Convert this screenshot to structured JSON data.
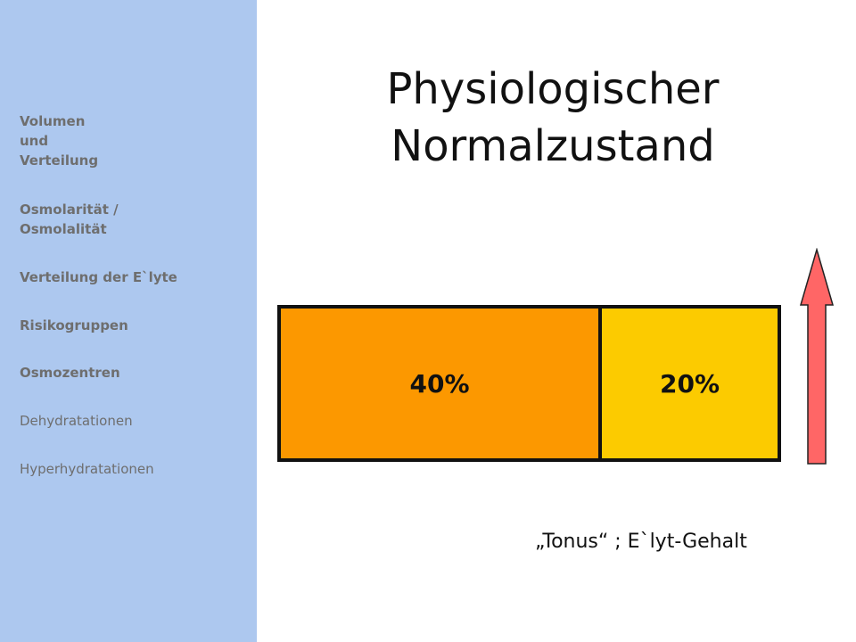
{
  "sidebar": {
    "items": [
      {
        "label": "Volumen\nund\nVerteilung",
        "bold": true
      },
      {
        "label": "Osmolarität /\nOsmolalität",
        "bold": true
      },
      {
        "label": "Verteilung der E`lyte",
        "bold": true
      },
      {
        "label": "Risikogruppen",
        "bold": true
      },
      {
        "label": "Osmozentren",
        "bold": true
      },
      {
        "label": "Dehydratationen",
        "bold": false
      },
      {
        "label": "Hyperhydratationen",
        "bold": false
      }
    ]
  },
  "main": {
    "title": "Physiologischer Normalzustand",
    "bars": [
      {
        "label": "40%",
        "color": "#fc9800"
      },
      {
        "label": "20%",
        "color": "#fccb00"
      }
    ],
    "arrow_color": "#ff6666",
    "caption": "„Tonus“ ; E`lyt-Gehalt"
  },
  "colors": {
    "sidebar_bg": "#adc8ef",
    "nav_text": "#6e6e6e"
  }
}
